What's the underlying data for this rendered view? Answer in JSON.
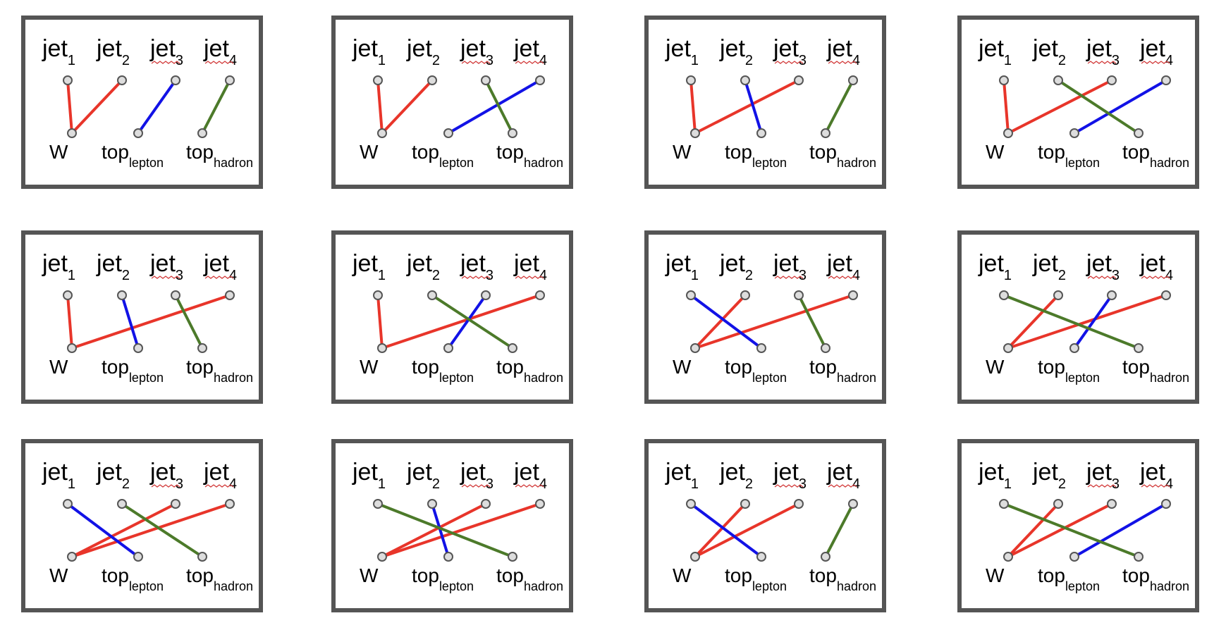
{
  "jet_labels": [
    {
      "base": "jet",
      "sub": "1"
    },
    {
      "base": "jet",
      "sub": "2"
    },
    {
      "base": "jet",
      "sub": "3"
    },
    {
      "base": "jet",
      "sub": "4"
    }
  ],
  "targets": [
    {
      "base": "W",
      "sub": ""
    },
    {
      "base": "top",
      "sub": "lepton"
    },
    {
      "base": "top",
      "sub": "hadron"
    }
  ],
  "colors": {
    "W": "#e8352a",
    "top_lepton": "#1212e6",
    "top_hadron": "#4c7a2a",
    "frame": "#555555",
    "node_fill": "#dddddd"
  },
  "panels": [
    {
      "W": [
        1,
        2
      ],
      "top_lepton": 3,
      "top_hadron": 4
    },
    {
      "W": [
        1,
        2
      ],
      "top_lepton": 4,
      "top_hadron": 3
    },
    {
      "W": [
        1,
        3
      ],
      "top_lepton": 2,
      "top_hadron": 4
    },
    {
      "W": [
        1,
        3
      ],
      "top_lepton": 4,
      "top_hadron": 2
    },
    {
      "W": [
        1,
        4
      ],
      "top_lepton": 2,
      "top_hadron": 3
    },
    {
      "W": [
        1,
        4
      ],
      "top_lepton": 3,
      "top_hadron": 2
    },
    {
      "W": [
        2,
        4
      ],
      "top_lepton": 1,
      "top_hadron": 3
    },
    {
      "W": [
        2,
        4
      ],
      "top_lepton": 3,
      "top_hadron": 1
    },
    {
      "W": [
        3,
        4
      ],
      "top_lepton": 1,
      "top_hadron": 2
    },
    {
      "W": [
        3,
        4
      ],
      "top_lepton": 2,
      "top_hadron": 1
    },
    {
      "W": [
        2,
        3
      ],
      "top_lepton": 1,
      "top_hadron": 4
    },
    {
      "W": [
        2,
        3
      ],
      "top_lepton": 4,
      "top_hadron": 1
    }
  ]
}
